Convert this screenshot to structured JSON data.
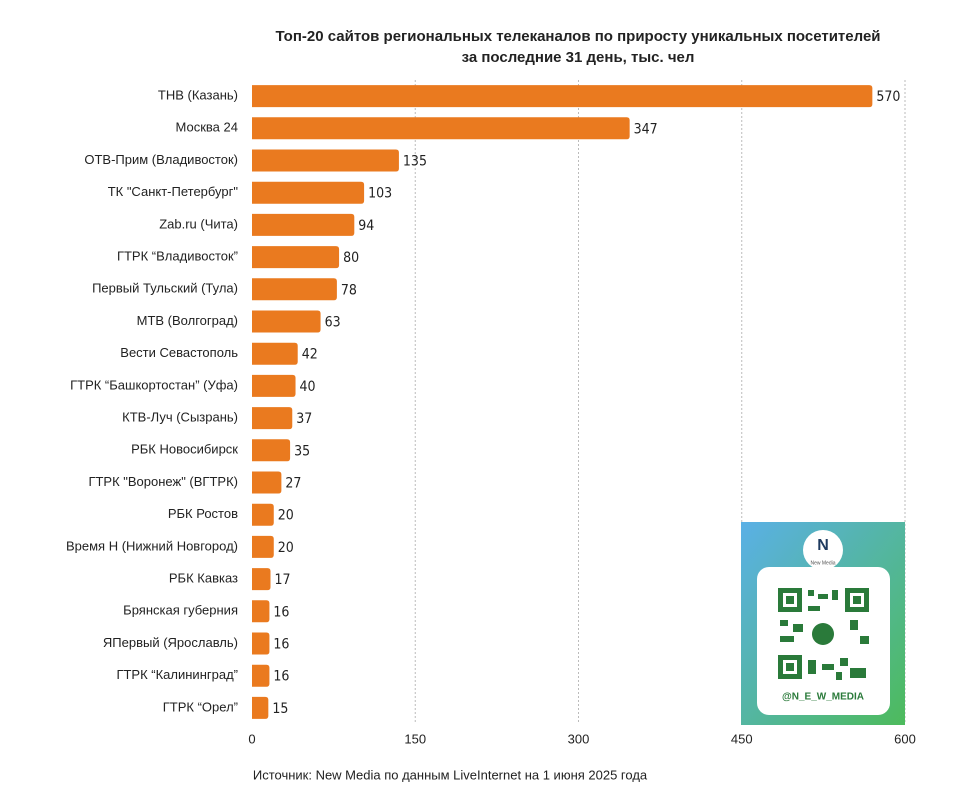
{
  "chart_data": {
    "type": "bar",
    "orientation": "horizontal",
    "title": "Топ-20 сайтов региональных телеканалов по приросту уникальных посетителей",
    "subtitle": "за последние 31 день, тыс. чел",
    "categories": [
      "ТНВ (Казань)",
      "Москва 24",
      "ОТВ-Прим (Владивосток)",
      "ТК \"Санкт-Петербург\"",
      "Zab.ru (Чита)",
      "ГТРК “Владивосток”",
      "Первый Тульский (Тула)",
      "МТВ (Волгоград)",
      "Вести Севастополь",
      "ГТРК “Башкортостан” (Уфа)",
      "КТВ-Луч (Сызрань)",
      "РБК Новосибирск",
      "ГТРК \"Воронеж\" (ВГТРК)",
      "РБК Ростов",
      "Время Н (Нижний Новгород)",
      "РБК Кавказ",
      "Брянская губерния",
      "ЯПервый (Ярославль)",
      "ГТРК “Калининград”",
      "ГТРК “Орел”"
    ],
    "values": [
      570,
      347,
      135,
      103,
      94,
      80,
      78,
      63,
      42,
      40,
      37,
      35,
      27,
      20,
      20,
      17,
      16,
      16,
      16,
      15
    ],
    "color": "#ea7a1f",
    "xlim": [
      0,
      600
    ],
    "xticks": [
      0,
      150,
      300,
      450,
      600
    ],
    "grid": true,
    "source": "Источник: New Media по данным LiveInternet на 1 июня 2025 года",
    "badge": {
      "logo": "New Media",
      "handle": "@N_E_W_MEDIA"
    }
  }
}
